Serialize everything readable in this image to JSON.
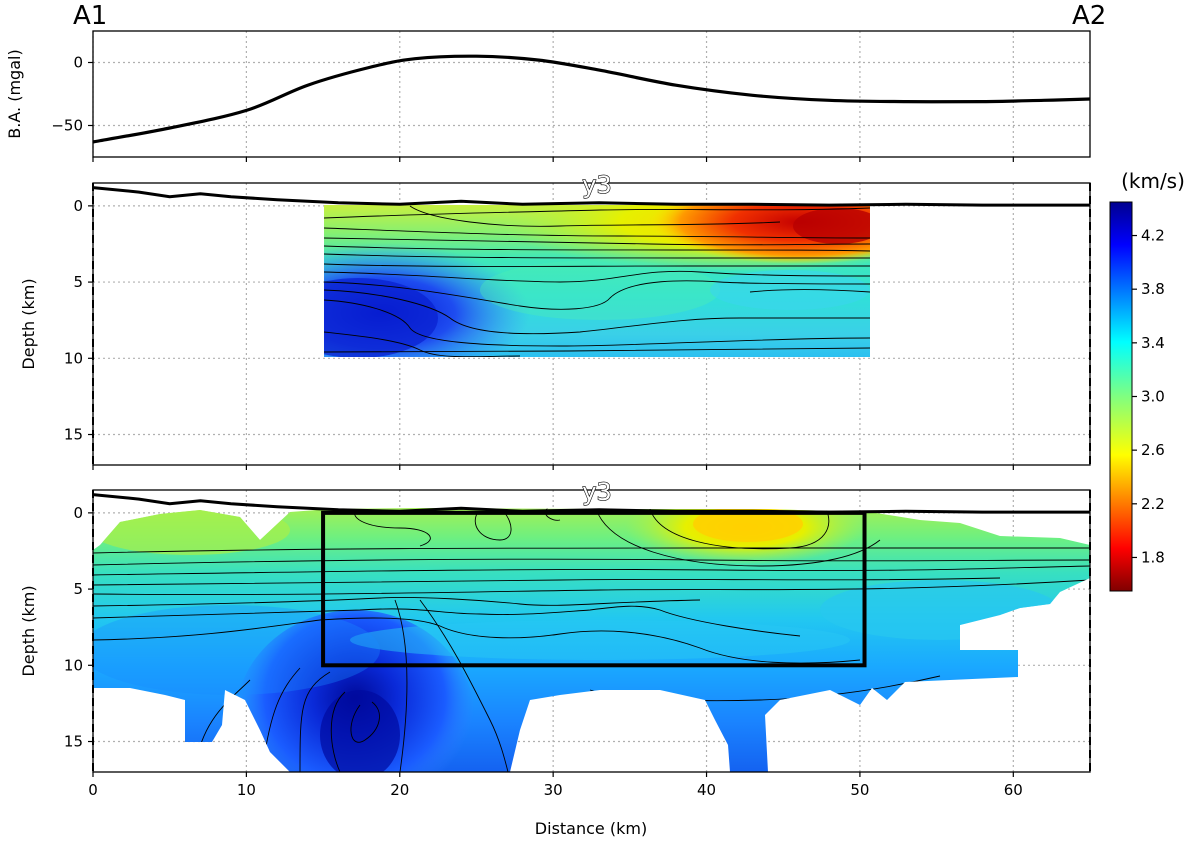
{
  "labels": {
    "start": "A1",
    "end": "A2",
    "profile": "y3"
  },
  "chart_data": [
    {
      "type": "line",
      "panel": "bouguer-anomaly",
      "title": "",
      "xlabel": "",
      "ylabel": "B.A. (mgal)",
      "xlim": [
        0,
        65
      ],
      "ylim": [
        -75,
        25
      ],
      "xticks": [
        0,
        10,
        20,
        30,
        40,
        50,
        60
      ],
      "yticks": [
        -50,
        0
      ],
      "grid": true,
      "series": [
        {
          "x": [
            0,
            5,
            10,
            14,
            18,
            21,
            25,
            29,
            33,
            38,
            43,
            48,
            53,
            58,
            62,
            65
          ],
          "y": [
            -63,
            -52,
            -38,
            -18,
            -4,
            3,
            5,
            2,
            -6,
            -18,
            -26,
            -30,
            -31,
            -31,
            -30,
            -29
          ]
        }
      ]
    },
    {
      "type": "heatmap",
      "panel": "velocity-model-inset",
      "title": "",
      "xlabel": "",
      "ylabel": "Depth (km)",
      "xlim": [
        0,
        65
      ],
      "ylim": [
        17,
        -1.5
      ],
      "xticks": [
        0,
        10,
        20,
        30,
        40,
        50,
        60
      ],
      "yticks": [
        0,
        5,
        10,
        15
      ],
      "grid": true,
      "extent": {
        "x": [
          15,
          50.3
        ],
        "depth": [
          0,
          10
        ]
      },
      "topography_elevation_km": {
        "x": [
          0,
          3,
          5,
          7,
          9,
          12,
          16,
          20,
          24,
          28,
          33,
          38,
          43,
          48,
          53,
          58,
          65
        ],
        "z": [
          1.2,
          0.9,
          0.6,
          0.8,
          0.6,
          0.4,
          0.2,
          0.1,
          0.3,
          0.1,
          0.2,
          0.1,
          0.1,
          0.05,
          0.1,
          0.05,
          0.05
        ]
      }
    },
    {
      "type": "heatmap",
      "panel": "velocity-model-full",
      "title": "",
      "xlabel": "Distance (km)",
      "ylabel": "Depth (km)",
      "xlim": [
        0,
        65
      ],
      "ylim": [
        17,
        -1.5
      ],
      "xticks": [
        0,
        10,
        20,
        30,
        40,
        50,
        60
      ],
      "yticks": [
        0,
        5,
        10,
        15
      ],
      "grid": true,
      "box": {
        "x": [
          15,
          50.3
        ],
        "depth": [
          0,
          10
        ]
      },
      "topography_elevation_km": {
        "x": [
          0,
          3,
          5,
          7,
          9,
          12,
          16,
          20,
          24,
          28,
          33,
          38,
          43,
          48,
          53,
          58,
          65
        ],
        "z": [
          1.2,
          0.9,
          0.6,
          0.8,
          0.6,
          0.4,
          0.2,
          0.1,
          0.3,
          0.1,
          0.2,
          0.1,
          0.1,
          0.05,
          0.1,
          0.05,
          0.05
        ]
      }
    }
  ],
  "colorbar": {
    "title": "(km/s)",
    "min": 1.55,
    "max": 4.45,
    "ticks": [
      "1.8",
      "2.2",
      "2.6",
      "3.0",
      "3.4",
      "3.8",
      "4.2"
    ],
    "tick_values": [
      1.8,
      2.2,
      2.6,
      3.0,
      3.4,
      3.8,
      4.2
    ],
    "colormap": "jet",
    "orientation": "vertical",
    "low_color": "#800000",
    "high_color": "#00008f"
  }
}
